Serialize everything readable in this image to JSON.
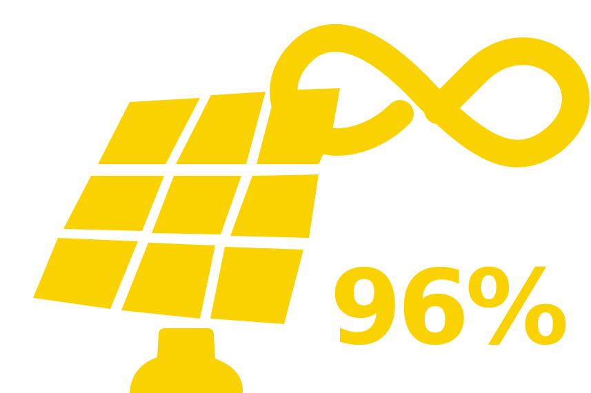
{
  "colors": {
    "accent": "#FAD200",
    "background": "#FFFFFF"
  },
  "icons": {
    "panel": "solar-panel-icon",
    "loop": "infinity-icon"
  },
  "stat": {
    "value": "96%"
  }
}
